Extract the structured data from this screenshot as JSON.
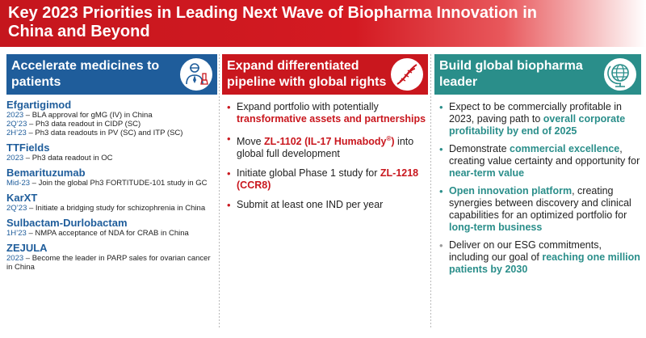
{
  "title": "Key 2023 Priorities in Leading Next Wave of Biopharma Innovation in China and Beyond",
  "colors": {
    "red": "#c9171e",
    "blue": "#1f5d9b",
    "teal": "#2a8e8a"
  },
  "col1": {
    "header": "Accelerate medicines to patients",
    "icon": "doctor-icon",
    "drugs": [
      {
        "name": "Efgartigimod",
        "lines": [
          {
            "date": "2023",
            "text": " – BLA approval for gMG (IV) in China"
          },
          {
            "date": "2Q’23",
            "text": " – Ph3 data readout in CIDP (SC)"
          },
          {
            "date": "2H’23",
            "text": " – Ph3 data readouts in PV (SC) and ITP (SC)"
          }
        ]
      },
      {
        "name": "TTFields",
        "lines": [
          {
            "date": "2023",
            "text": " – Ph3 data readout in OC"
          }
        ]
      },
      {
        "name": "Bemarituzumab",
        "lines": [
          {
            "date": "Mid-23",
            "text": " – Join the global Ph3 FORTITUDE-101 study in GC"
          }
        ]
      },
      {
        "name": "KarXT",
        "lines": [
          {
            "date": "2Q’23",
            "text": " – Initiate a bridging study for schizophrenia in China"
          }
        ]
      },
      {
        "name": "Sulbactam-Durlobactam",
        "lines": [
          {
            "date": "1H’23",
            "text": " – NMPA acceptance of NDA for CRAB in China"
          }
        ]
      },
      {
        "name": "ZEJULA",
        "lines": [
          {
            "date": "2023",
            "text": " – Become the leader in PARP sales for ovarian cancer in China"
          }
        ]
      }
    ]
  },
  "col2": {
    "header": "Expand differentiated pipeline with global rights",
    "icon": "dna-icon",
    "b1": {
      "t1": "Expand portfolio with potentially ",
      "h1": "transformative assets and partnerships"
    },
    "b2": {
      "t1": "Move ",
      "h1": "ZL-1102 (IL-17 Humabody",
      "sup": "®",
      "h2": ")",
      "t2": " into global full development"
    },
    "b3": {
      "t1": "Initiate global Phase 1 study for ",
      "h1": "ZL-1218 (CCR8)"
    },
    "b4": {
      "t1": "Submit at least one IND per year"
    }
  },
  "col3": {
    "header": "Build global biopharma leader",
    "icon": "globe-icon",
    "b1": {
      "t1": "Expect to be commercially profitable in 2023, paving path to ",
      "h1": "overall corporate profitability by end of 2025"
    },
    "b2": {
      "t1": "Demonstrate ",
      "h1": "commercial excellence",
      "t2": ", creating value certainty and opportunity for ",
      "h2": "near-term value"
    },
    "b3": {
      "h1": "Open innovation platform",
      "t1": ", creating synergies between discovery and clinical capabilities for an optimized portfolio for ",
      "h2": "long-term business"
    },
    "b4": {
      "t1": "Deliver on our ESG commitments, including our goal of ",
      "h1": "reaching one million patients by 2030"
    }
  }
}
